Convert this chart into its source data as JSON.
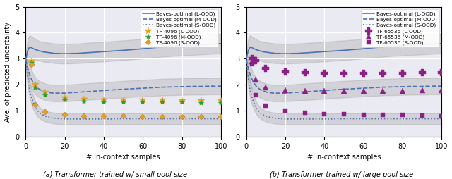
{
  "fig_width": 6.4,
  "fig_height": 2.54,
  "dpi": 100,
  "bg_color": "#eaeaf2",
  "subtitle_a": "(a) Transformer trained w/ small pool size",
  "subtitle_b": "(b) Transformer trained w/ large pool size",
  "xlabel": "# in-context samples",
  "ylabel": "Ave. of predicted uncertainty",
  "xlim": [
    0,
    100
  ],
  "ylim": [
    0,
    5
  ],
  "yticks": [
    0,
    1,
    2,
    3,
    4,
    5
  ],
  "xticks": [
    0,
    20,
    40,
    60,
    80,
    100
  ],
  "bayes_x": [
    0,
    1,
    2,
    3,
    4,
    5,
    6,
    7,
    8,
    9,
    10,
    11,
    12,
    13,
    14,
    15,
    16,
    17,
    18,
    19,
    20,
    22,
    24,
    26,
    28,
    30,
    32,
    34,
    36,
    38,
    40,
    42,
    44,
    46,
    48,
    50,
    55,
    60,
    65,
    70,
    75,
    80,
    85,
    90,
    95,
    100
  ],
  "bayes_L_y": [
    2.95,
    3.3,
    3.45,
    3.42,
    3.38,
    3.35,
    3.32,
    3.3,
    3.28,
    3.26,
    3.25,
    3.24,
    3.23,
    3.22,
    3.21,
    3.2,
    3.2,
    3.2,
    3.19,
    3.19,
    3.19,
    3.19,
    3.2,
    3.2,
    3.21,
    3.22,
    3.23,
    3.24,
    3.25,
    3.26,
    3.27,
    3.28,
    3.29,
    3.3,
    3.31,
    3.32,
    3.35,
    3.38,
    3.42,
    3.45,
    3.48,
    3.5,
    3.52,
    3.54,
    3.56,
    3.58
  ],
  "bayes_L_lo": [
    2.7,
    2.85,
    3.0,
    3.0,
    2.98,
    2.96,
    2.94,
    2.92,
    2.9,
    2.88,
    2.87,
    2.86,
    2.85,
    2.84,
    2.83,
    2.82,
    2.82,
    2.82,
    2.81,
    2.81,
    2.81,
    2.81,
    2.82,
    2.82,
    2.83,
    2.84,
    2.85,
    2.86,
    2.87,
    2.88,
    2.89,
    2.9,
    2.91,
    2.92,
    2.93,
    2.94,
    2.97,
    3.0,
    3.04,
    3.07,
    3.1,
    3.12,
    3.14,
    3.16,
    3.18,
    3.2
  ],
  "bayes_L_hi": [
    3.2,
    3.75,
    3.9,
    3.85,
    3.8,
    3.75,
    3.7,
    3.68,
    3.66,
    3.64,
    3.63,
    3.62,
    3.61,
    3.6,
    3.59,
    3.58,
    3.58,
    3.58,
    3.57,
    3.57,
    3.57,
    3.57,
    3.58,
    3.58,
    3.59,
    3.6,
    3.61,
    3.62,
    3.63,
    3.64,
    3.65,
    3.66,
    3.67,
    3.68,
    3.69,
    3.7,
    3.73,
    3.76,
    3.8,
    3.83,
    3.86,
    3.88,
    3.9,
    3.92,
    3.94,
    3.96
  ],
  "bayes_M_y": [
    2.95,
    2.65,
    2.4,
    2.2,
    2.05,
    1.95,
    1.87,
    1.82,
    1.78,
    1.75,
    1.72,
    1.7,
    1.69,
    1.68,
    1.67,
    1.67,
    1.67,
    1.67,
    1.67,
    1.67,
    1.67,
    1.68,
    1.69,
    1.7,
    1.71,
    1.72,
    1.73,
    1.74,
    1.75,
    1.76,
    1.77,
    1.78,
    1.79,
    1.8,
    1.81,
    1.82,
    1.84,
    1.86,
    1.88,
    1.9,
    1.91,
    1.92,
    1.93,
    1.93,
    1.94,
    1.94
  ],
  "bayes_M_lo": [
    2.7,
    2.3,
    2.05,
    1.85,
    1.72,
    1.62,
    1.55,
    1.5,
    1.46,
    1.43,
    1.4,
    1.38,
    1.37,
    1.36,
    1.35,
    1.35,
    1.35,
    1.35,
    1.35,
    1.35,
    1.35,
    1.36,
    1.37,
    1.38,
    1.39,
    1.4,
    1.41,
    1.42,
    1.43,
    1.44,
    1.45,
    1.46,
    1.47,
    1.48,
    1.49,
    1.5,
    1.52,
    1.54,
    1.56,
    1.58,
    1.59,
    1.6,
    1.61,
    1.61,
    1.62,
    1.62
  ],
  "bayes_M_hi": [
    3.2,
    3.0,
    2.75,
    2.55,
    2.38,
    2.28,
    2.19,
    2.14,
    2.1,
    2.07,
    2.04,
    2.02,
    2.01,
    2.0,
    1.99,
    1.99,
    1.99,
    1.99,
    1.99,
    1.99,
    1.99,
    2.0,
    2.01,
    2.02,
    2.03,
    2.04,
    2.05,
    2.06,
    2.07,
    2.08,
    2.09,
    2.1,
    2.11,
    2.12,
    2.13,
    2.14,
    2.16,
    2.18,
    2.2,
    2.22,
    2.23,
    2.24,
    2.25,
    2.25,
    2.26,
    2.26
  ],
  "bayes_S_y": [
    2.95,
    2.3,
    1.8,
    1.5,
    1.28,
    1.12,
    1.0,
    0.92,
    0.86,
    0.82,
    0.78,
    0.76,
    0.74,
    0.72,
    0.71,
    0.7,
    0.69,
    0.69,
    0.68,
    0.68,
    0.67,
    0.67,
    0.67,
    0.67,
    0.67,
    0.67,
    0.67,
    0.67,
    0.67,
    0.67,
    0.67,
    0.67,
    0.67,
    0.68,
    0.68,
    0.68,
    0.68,
    0.68,
    0.68,
    0.68,
    0.68,
    0.68,
    0.68,
    0.68,
    0.68,
    0.68
  ],
  "bayes_S_lo": [
    2.7,
    1.95,
    1.5,
    1.22,
    1.02,
    0.88,
    0.77,
    0.7,
    0.65,
    0.61,
    0.57,
    0.55,
    0.53,
    0.51,
    0.5,
    0.49,
    0.48,
    0.48,
    0.47,
    0.47,
    0.46,
    0.46,
    0.46,
    0.46,
    0.46,
    0.46,
    0.46,
    0.46,
    0.46,
    0.46,
    0.46,
    0.46,
    0.46,
    0.47,
    0.47,
    0.47,
    0.47,
    0.47,
    0.47,
    0.47,
    0.47,
    0.47,
    0.47,
    0.47,
    0.47,
    0.47
  ],
  "bayes_S_hi": [
    3.2,
    2.65,
    2.1,
    1.78,
    1.54,
    1.36,
    1.23,
    1.14,
    1.07,
    1.03,
    0.99,
    0.97,
    0.95,
    0.93,
    0.92,
    0.91,
    0.9,
    0.9,
    0.89,
    0.89,
    0.88,
    0.88,
    0.88,
    0.88,
    0.88,
    0.88,
    0.88,
    0.88,
    0.88,
    0.88,
    0.88,
    0.88,
    0.88,
    0.89,
    0.89,
    0.89,
    0.89,
    0.89,
    0.89,
    0.89,
    0.89,
    0.89,
    0.89,
    0.89,
    0.89,
    0.89
  ],
  "tf_small_x": [
    3,
    5,
    10,
    20,
    30,
    40,
    50,
    60,
    70,
    80,
    90,
    100
  ],
  "tf_small_L_y": [
    2.9,
    2.0,
    1.7,
    1.48,
    1.42,
    1.4,
    1.4,
    1.4,
    1.4,
    1.38,
    1.38,
    1.38
  ],
  "tf_small_M_y": [
    2.85,
    1.9,
    1.6,
    1.4,
    1.35,
    1.33,
    1.33,
    1.32,
    1.32,
    1.32,
    1.3,
    1.3
  ],
  "tf_small_S_y": [
    2.75,
    1.2,
    0.95,
    0.82,
    0.78,
    0.78,
    0.77,
    0.76,
    0.76,
    0.76,
    0.76,
    0.76
  ],
  "tf_large_x": [
    3,
    5,
    10,
    20,
    30,
    40,
    50,
    60,
    70,
    80,
    90,
    100
  ],
  "tf_large_L_y": [
    3.0,
    2.92,
    2.62,
    2.48,
    2.45,
    2.44,
    2.43,
    2.43,
    2.44,
    2.44,
    2.46,
    2.45
  ],
  "tf_large_M_y": [
    2.9,
    2.2,
    1.88,
    1.78,
    1.76,
    1.76,
    1.76,
    1.76,
    1.76,
    1.76,
    1.77,
    1.77
  ],
  "tf_large_S_y": [
    2.8,
    1.58,
    1.18,
    1.0,
    0.9,
    0.87,
    0.85,
    0.83,
    0.82,
    0.82,
    0.8,
    0.78
  ],
  "color_bayes": "#4c72b0",
  "color_tf_small_L": "#e8a020",
  "color_tf_small_M": "#2ca02c",
  "color_tf_small_S": "#e8a020",
  "color_tf_large_L": "#8b2085",
  "color_tf_large_M": "#8b2085",
  "color_tf_large_S": "#8b2085",
  "shade_color": "#999999",
  "shade_alpha": 0.3
}
